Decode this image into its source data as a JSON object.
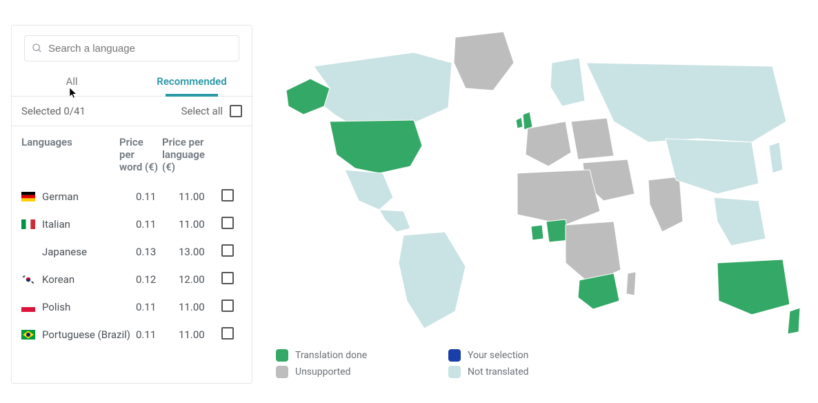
{
  "search": {
    "placeholder": "Search a language"
  },
  "tabs": {
    "all": "All",
    "recommended": "Recommended",
    "active": "recommended"
  },
  "selection": {
    "selected_label": "Selected 0/41",
    "select_all_label": "Select all"
  },
  "columns": {
    "lang": "Languages",
    "ppw": "Price per word (€)",
    "ppl": "Price per language (€)"
  },
  "rows": [
    {
      "flag": "de",
      "name": "German",
      "ppw": "0.11",
      "ppl": "11.00"
    },
    {
      "flag": "it",
      "name": "Italian",
      "ppw": "0.11",
      "ppl": "11.00"
    },
    {
      "flag": "jp",
      "name": "Japanese",
      "ppw": "0.13",
      "ppl": "13.00"
    },
    {
      "flag": "kr",
      "name": "Korean",
      "ppw": "0.12",
      "ppl": "12.00"
    },
    {
      "flag": "pl",
      "name": "Polish",
      "ppw": "0.11",
      "ppl": "11.00"
    },
    {
      "flag": "br",
      "name": "Portuguese (Brazil)",
      "ppw": "0.11",
      "ppl": "11.00"
    }
  ],
  "legend": {
    "done": "Translation done",
    "selection": "Your selection",
    "unsupported": "Unsupported",
    "not_translated": "Not translated"
  },
  "colors": {
    "done": "#34a866",
    "selection": "#1a3fa8",
    "unsupported": "#bdbdbd",
    "not_translated": "#c9e2e3",
    "map_stroke": "#ffffff",
    "accent": "#2a98a6"
  },
  "map": {
    "background": "#ffffff",
    "region_status": {
      "north_america_west": "not_translated",
      "usa": "done",
      "alaska": "done",
      "canada": "not_translated",
      "greenland": "unsupported",
      "mexico": "not_translated",
      "central_america": "not_translated",
      "south_america": "not_translated",
      "uk": "done",
      "ireland": "done",
      "west_europe": "unsupported",
      "east_europe": "unsupported",
      "scandinavia": "not_translated",
      "russia": "not_translated",
      "middle_east": "unsupported",
      "north_africa": "unsupported",
      "ghana": "done",
      "nigeria": "done",
      "central_africa": "unsupported",
      "south_africa": "done",
      "madagascar": "unsupported",
      "india": "unsupported",
      "china": "not_translated",
      "se_asia": "not_translated",
      "japan": "not_translated",
      "australia": "done",
      "new_zealand": "done"
    }
  }
}
